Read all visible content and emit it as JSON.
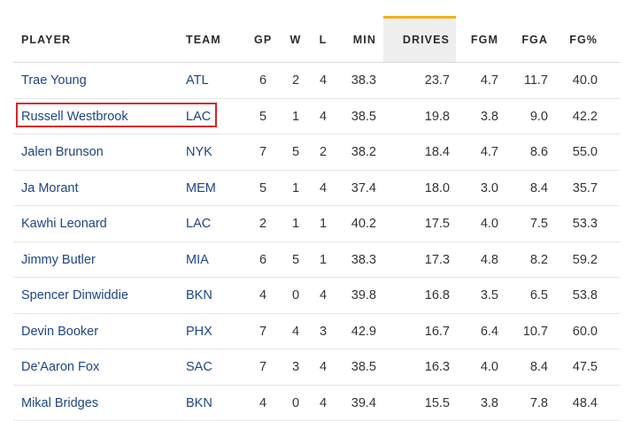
{
  "columns": {
    "player": "PLAYER",
    "team": "TEAM",
    "gp": "GP",
    "w": "W",
    "l": "L",
    "min": "MIN",
    "drives": "DRIVES",
    "fgm": "FGM",
    "fga": "FGA",
    "fgp": "FG%"
  },
  "sorted_column": "drives",
  "highlighted_row": 1,
  "colors": {
    "sort_accent": "#f2b21b",
    "link": "#1d4489",
    "highlight_box": "#d6242a"
  },
  "rows": [
    {
      "player": "Trae Young",
      "team": "ATL",
      "gp": "6",
      "w": "2",
      "l": "4",
      "min": "38.3",
      "drives": "23.7",
      "fgm": "4.7",
      "fga": "11.7",
      "fgp": "40.0"
    },
    {
      "player": "Russell Westbrook",
      "team": "LAC",
      "gp": "5",
      "w": "1",
      "l": "4",
      "min": "38.5",
      "drives": "19.8",
      "fgm": "3.8",
      "fga": "9.0",
      "fgp": "42.2"
    },
    {
      "player": "Jalen Brunson",
      "team": "NYK",
      "gp": "7",
      "w": "5",
      "l": "2",
      "min": "38.2",
      "drives": "18.4",
      "fgm": "4.7",
      "fga": "8.6",
      "fgp": "55.0"
    },
    {
      "player": "Ja Morant",
      "team": "MEM",
      "gp": "5",
      "w": "1",
      "l": "4",
      "min": "37.4",
      "drives": "18.0",
      "fgm": "3.0",
      "fga": "8.4",
      "fgp": "35.7"
    },
    {
      "player": "Kawhi Leonard",
      "team": "LAC",
      "gp": "2",
      "w": "1",
      "l": "1",
      "min": "40.2",
      "drives": "17.5",
      "fgm": "4.0",
      "fga": "7.5",
      "fgp": "53.3"
    },
    {
      "player": "Jimmy Butler",
      "team": "MIA",
      "gp": "6",
      "w": "5",
      "l": "1",
      "min": "38.3",
      "drives": "17.3",
      "fgm": "4.8",
      "fga": "8.2",
      "fgp": "59.2"
    },
    {
      "player": "Spencer Dinwiddie",
      "team": "BKN",
      "gp": "4",
      "w": "0",
      "l": "4",
      "min": "39.8",
      "drives": "16.8",
      "fgm": "3.5",
      "fga": "6.5",
      "fgp": "53.8"
    },
    {
      "player": "Devin Booker",
      "team": "PHX",
      "gp": "7",
      "w": "4",
      "l": "3",
      "min": "42.9",
      "drives": "16.7",
      "fgm": "6.4",
      "fga": "10.7",
      "fgp": "60.0"
    },
    {
      "player": "De'Aaron Fox",
      "team": "SAC",
      "gp": "7",
      "w": "3",
      "l": "4",
      "min": "38.5",
      "drives": "16.3",
      "fgm": "4.0",
      "fga": "8.4",
      "fgp": "47.5"
    },
    {
      "player": "Mikal Bridges",
      "team": "BKN",
      "gp": "4",
      "w": "0",
      "l": "4",
      "min": "39.4",
      "drives": "15.5",
      "fgm": "3.8",
      "fga": "7.8",
      "fgp": "48.4"
    }
  ]
}
